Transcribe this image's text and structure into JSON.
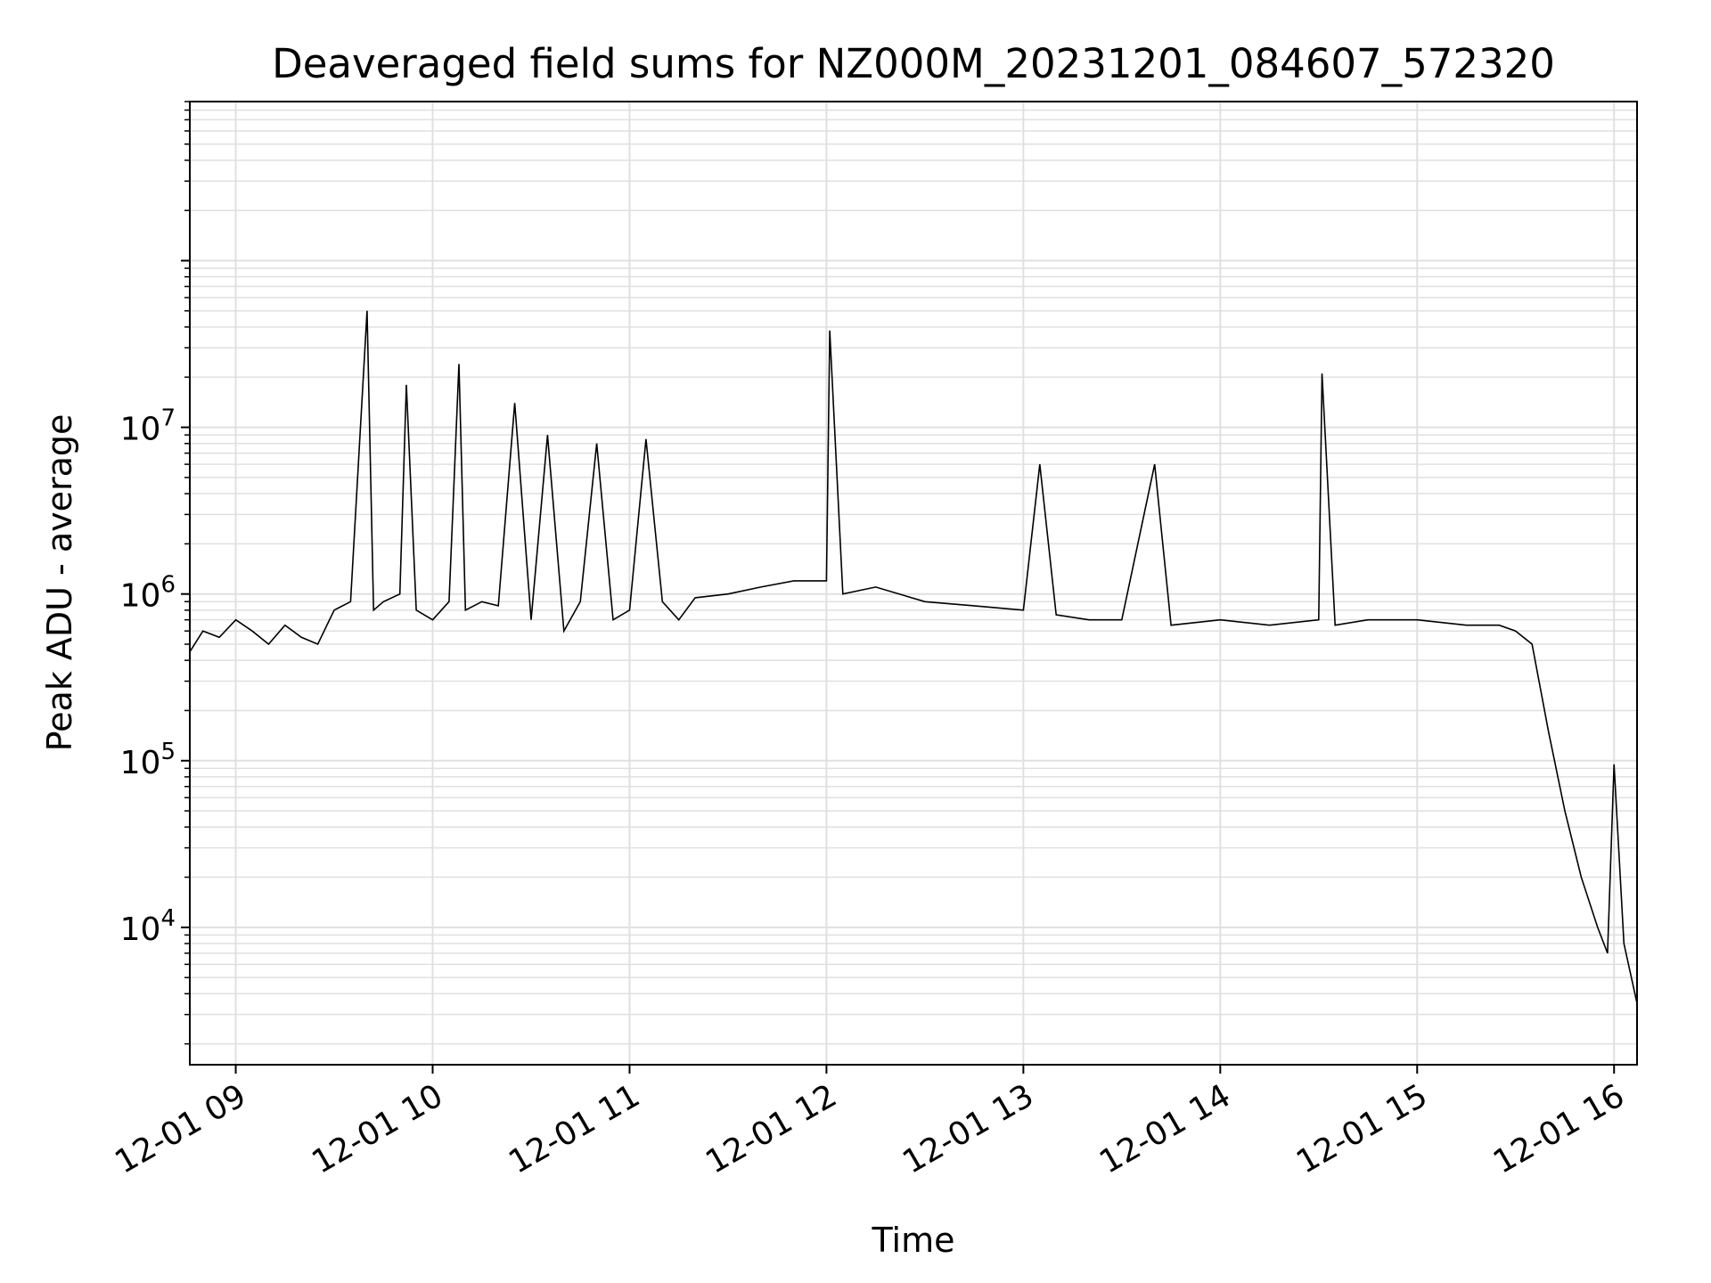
{
  "chart_data": {
    "type": "line",
    "title": "Deaveraged field sums for NZ000M_20231201_084607_572320",
    "xlabel": "Time",
    "ylabel": "Peak ADU - average",
    "y_scale": "log",
    "ylim": [
      1500,
      900000000
    ],
    "xlim": [
      "2023-12-01 08:46",
      "2023-12-01 16:07"
    ],
    "grid": true,
    "line_color": "#000000",
    "grid_color": "#e0e0e0",
    "x_ticks": [
      {
        "label": "12-01 09",
        "value": "2023-12-01 09:00"
      },
      {
        "label": "12-01 10",
        "value": "2023-12-01 10:00"
      },
      {
        "label": "12-01 11",
        "value": "2023-12-01 11:00"
      },
      {
        "label": "12-01 12",
        "value": "2023-12-01 12:00"
      },
      {
        "label": "12-01 13",
        "value": "2023-12-01 13:00"
      },
      {
        "label": "12-01 14",
        "value": "2023-12-01 14:00"
      },
      {
        "label": "12-01 15",
        "value": "2023-12-01 15:00"
      },
      {
        "label": "12-01 16",
        "value": "2023-12-01 16:00"
      }
    ],
    "y_ticks": [
      {
        "base": "10",
        "exp": "4",
        "value": 10000
      },
      {
        "base": "10",
        "exp": "5",
        "value": 100000
      },
      {
        "base": "10",
        "exp": "6",
        "value": 1000000
      },
      {
        "base": "10",
        "exp": "7",
        "value": 10000000
      }
    ],
    "series": [
      {
        "x": [
          "2023-12-01 08:46",
          "2023-12-01 08:50",
          "2023-12-01 08:55",
          "2023-12-01 09:00",
          "2023-12-01 09:05",
          "2023-12-01 09:10",
          "2023-12-01 09:15",
          "2023-12-01 09:20",
          "2023-12-01 09:25",
          "2023-12-01 09:30",
          "2023-12-01 09:35",
          "2023-12-01 09:40",
          "2023-12-01 09:42",
          "2023-12-01 09:45",
          "2023-12-01 09:50",
          "2023-12-01 09:52",
          "2023-12-01 09:55",
          "2023-12-01 10:00",
          "2023-12-01 10:05",
          "2023-12-01 10:08",
          "2023-12-01 10:10",
          "2023-12-01 10:15",
          "2023-12-01 10:20",
          "2023-12-01 10:25",
          "2023-12-01 10:30",
          "2023-12-01 10:35",
          "2023-12-01 10:40",
          "2023-12-01 10:45",
          "2023-12-01 10:50",
          "2023-12-01 10:55",
          "2023-12-01 11:00",
          "2023-12-01 11:05",
          "2023-12-01 11:10",
          "2023-12-01 11:15",
          "2023-12-01 11:20",
          "2023-12-01 11:30",
          "2023-12-01 11:40",
          "2023-12-01 11:50",
          "2023-12-01 12:00",
          "2023-12-01 12:01",
          "2023-12-01 12:05",
          "2023-12-01 12:15",
          "2023-12-01 12:30",
          "2023-12-01 12:45",
          "2023-12-01 13:00",
          "2023-12-01 13:05",
          "2023-12-01 13:10",
          "2023-12-01 13:20",
          "2023-12-01 13:30",
          "2023-12-01 13:40",
          "2023-12-01 13:45",
          "2023-12-01 14:00",
          "2023-12-01 14:15",
          "2023-12-01 14:30",
          "2023-12-01 14:31",
          "2023-12-01 14:35",
          "2023-12-01 14:45",
          "2023-12-01 15:00",
          "2023-12-01 15:15",
          "2023-12-01 15:25",
          "2023-12-01 15:30",
          "2023-12-01 15:35",
          "2023-12-01 15:40",
          "2023-12-01 15:45",
          "2023-12-01 15:50",
          "2023-12-01 15:55",
          "2023-12-01 15:58",
          "2023-12-01 16:00",
          "2023-12-01 16:03",
          "2023-12-01 16:07"
        ],
        "y": [
          450000,
          600000,
          550000,
          700000,
          600000,
          500000,
          650000,
          550000,
          500000,
          800000,
          900000,
          50000000,
          800000,
          900000,
          1000000,
          18000000,
          800000,
          700000,
          900000,
          24000000,
          800000,
          900000,
          850000,
          14000000,
          700000,
          9000000,
          600000,
          900000,
          8000000,
          700000,
          800000,
          8500000,
          900000,
          700000,
          950000,
          1000000,
          1100000,
          1200000,
          1200000,
          38000000,
          1000000,
          1100000,
          900000,
          850000,
          800000,
          6000000,
          750000,
          700000,
          700000,
          6000000,
          650000,
          700000,
          650000,
          700000,
          21000000,
          650000,
          700000,
          700000,
          650000,
          650000,
          600000,
          500000,
          150000,
          50000,
          20000,
          10000,
          7000,
          95000,
          8000,
          3500
        ]
      }
    ]
  }
}
